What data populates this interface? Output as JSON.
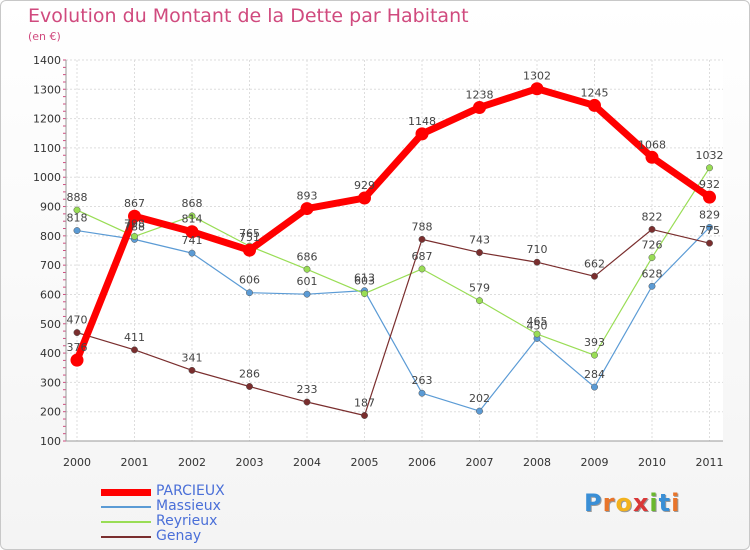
{
  "title": "Evolution du Montant de la Dette par Habitant",
  "subtitle": "(en €)",
  "logo": {
    "text": "Proxiti",
    "letters": [
      {
        "ch": "P",
        "color": "#3a8fd6"
      },
      {
        "ch": "r",
        "color": "#e8742a"
      },
      {
        "ch": "o",
        "color": "#f2b21e"
      },
      {
        "ch": "x",
        "color": "#d93838"
      },
      {
        "ch": "i",
        "color": "#6ab82d"
      },
      {
        "ch": "t",
        "color": "#3a8fd6"
      },
      {
        "ch": "i",
        "color": "#e8742a"
      }
    ]
  },
  "chart_data": {
    "type": "line",
    "title": "Evolution du Montant de la Dette par Habitant",
    "subtitle": "(en €)",
    "xlabel": "",
    "ylabel": "",
    "categories": [
      "2000",
      "2001",
      "2002",
      "2003",
      "2004",
      "2005",
      "2006",
      "2007",
      "2008",
      "2009",
      "2010",
      "2011"
    ],
    "ylim": [
      100,
      1400
    ],
    "yticks": [
      100,
      200,
      300,
      400,
      500,
      600,
      700,
      800,
      900,
      1000,
      1100,
      1200,
      1300,
      1400
    ],
    "grid": true,
    "legend_position": "bottom-left",
    "series": [
      {
        "name": "PARCIEUX",
        "color": "#ff0000",
        "values": [
          376,
          867,
          814,
          751,
          893,
          929,
          1148,
          1238,
          1302,
          1245,
          1068,
          932
        ],
        "labels": [
          "376",
          "867",
          "814",
          "751",
          "893",
          "929",
          "1148",
          "1238",
          "1302",
          "1245",
          "1068",
          "932"
        ]
      },
      {
        "name": "Massieux",
        "color": "#5b9bd5",
        "values": [
          818,
          788,
          741,
          606,
          601,
          613,
          263,
          202,
          450,
          284,
          628,
          829
        ],
        "labels": [
          "818",
          "788",
          "741",
          "606",
          "601",
          "613",
          "263",
          "202",
          "450",
          "284",
          "628",
          "829"
        ]
      },
      {
        "name": "Reyrieux",
        "color": "#99dd55",
        "values": [
          888,
          798,
          868,
          765,
          686,
          603,
          687,
          579,
          465,
          393,
          726,
          1032
        ],
        "labels": [
          "888",
          "798",
          "868",
          "765",
          "686",
          "603",
          "687",
          "579",
          "465",
          "393",
          "726",
          "1032"
        ]
      },
      {
        "name": "Genay",
        "color": "#7a2e2e",
        "values": [
          470,
          411,
          341,
          286,
          233,
          187,
          788,
          743,
          710,
          662,
          822,
          775
        ],
        "labels": [
          "470",
          "411",
          "341",
          "286",
          "233",
          "187",
          "788",
          "743",
          "710",
          "662",
          "822",
          "775"
        ]
      }
    ]
  }
}
